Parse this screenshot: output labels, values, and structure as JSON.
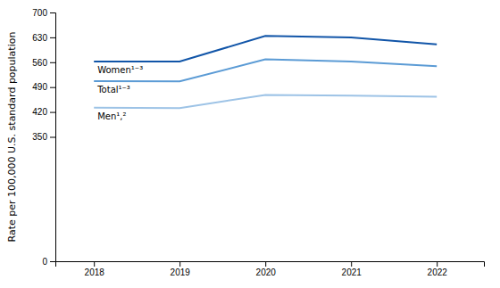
{
  "chart_data": {
    "type": "line",
    "ylabel": "Rate per 100,000 U.S. standard population",
    "x": [
      2018,
      2019,
      2020,
      2021,
      2022
    ],
    "series": [
      {
        "name": "Women¹⁻³",
        "color": "#1155a8",
        "values": [
          562,
          562,
          634,
          630,
          610
        ]
      },
      {
        "name": "Total¹⁻³",
        "color": "#5b9bd5",
        "values": [
          507,
          506,
          568,
          562,
          549
        ]
      },
      {
        "name": "Men¹,²",
        "color": "#9dc3e6",
        "values": [
          432,
          431,
          468,
          466,
          463
        ]
      }
    ],
    "xlim": [
      2017.55,
      2022.55
    ],
    "xticks": [
      2018,
      2019,
      2020,
      2021,
      2022
    ],
    "ylim": [
      0,
      700
    ],
    "yticks": [
      0,
      350,
      420,
      490,
      560,
      630,
      700
    ],
    "grid": false
  }
}
